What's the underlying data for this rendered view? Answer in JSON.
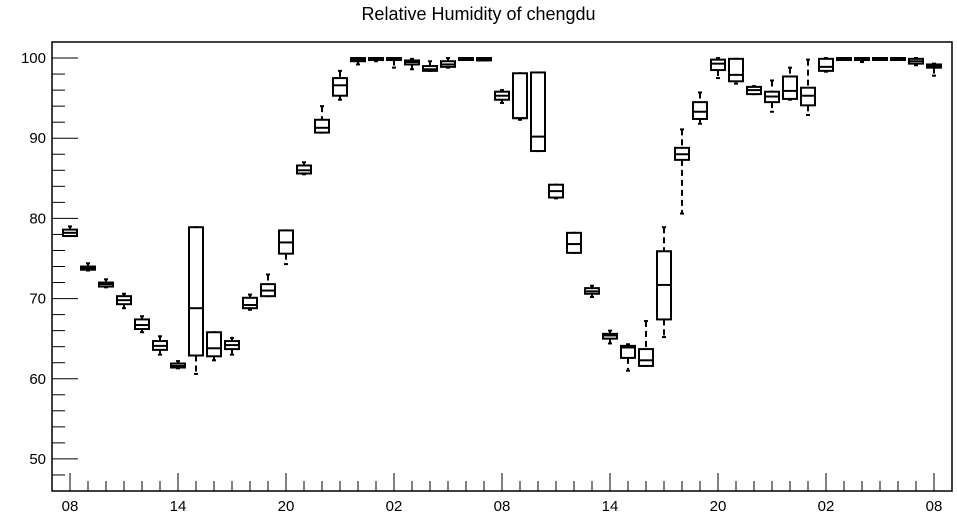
{
  "chart_data": {
    "type": "box",
    "title": "Relative Humidity of chengdu",
    "xlabel": "",
    "ylabel": "",
    "ylim": [
      46,
      102
    ],
    "xlim": [
      0,
      48
    ],
    "yticks": [
      50,
      60,
      70,
      80,
      90,
      100
    ],
    "xticks": [
      {
        "label": "08",
        "x": 0
      },
      {
        "label": "14",
        "x": 6
      },
      {
        "label": "20",
        "x": 12
      },
      {
        "label": "02",
        "x": 18
      },
      {
        "label": "08",
        "x": 24
      },
      {
        "label": "14",
        "x": 30
      },
      {
        "label": "20",
        "x": 36
      },
      {
        "label": "02",
        "x": 42
      },
      {
        "label": "08",
        "x": 48
      }
    ],
    "grid": false,
    "boxes": [
      {
        "x": 0,
        "min": 77.8,
        "q1": 77.8,
        "median": 78.2,
        "q3": 78.6,
        "max": 79.0
      },
      {
        "x": 1,
        "min": 73.5,
        "q1": 73.6,
        "median": 73.8,
        "q3": 74.0,
        "max": 74.4
      },
      {
        "x": 2,
        "min": 71.4,
        "q1": 71.5,
        "median": 71.8,
        "q3": 72.0,
        "max": 72.4
      },
      {
        "x": 3,
        "min": 68.8,
        "q1": 69.3,
        "median": 69.8,
        "q3": 70.3,
        "max": 70.6
      },
      {
        "x": 4,
        "min": 65.8,
        "q1": 66.2,
        "median": 66.7,
        "q3": 67.4,
        "max": 67.8
      },
      {
        "x": 5,
        "min": 63.0,
        "q1": 63.6,
        "median": 64.1,
        "q3": 64.7,
        "max": 65.3
      },
      {
        "x": 6,
        "min": 61.3,
        "q1": 61.4,
        "median": 61.6,
        "q3": 61.9,
        "max": 62.2
      },
      {
        "x": 7,
        "min": 60.6,
        "q1": 62.9,
        "median": 68.8,
        "q3": 78.9,
        "max": 78.9
      },
      {
        "x": 8,
        "min": 62.3,
        "q1": 62.8,
        "median": 63.8,
        "q3": 65.8,
        "max": 65.8
      },
      {
        "x": 9,
        "min": 63.0,
        "q1": 63.7,
        "median": 64.2,
        "q3": 64.7,
        "max": 65.1
      },
      {
        "x": 10,
        "min": 68.6,
        "q1": 68.8,
        "median": 69.2,
        "q3": 70.1,
        "max": 70.5
      },
      {
        "x": 11,
        "min": 70.3,
        "q1": 70.3,
        "median": 71.0,
        "q3": 71.8,
        "max": 73.0
      },
      {
        "x": 12,
        "min": 74.3,
        "q1": 75.6,
        "median": 77.0,
        "q3": 78.5,
        "max": 78.5
      },
      {
        "x": 13,
        "min": 85.5,
        "q1": 85.6,
        "median": 86.0,
        "q3": 86.6,
        "max": 87.0
      },
      {
        "x": 14,
        "min": 90.7,
        "q1": 90.7,
        "median": 91.3,
        "q3": 92.3,
        "max": 94.0
      },
      {
        "x": 15,
        "min": 94.8,
        "q1": 95.3,
        "median": 96.6,
        "q3": 97.5,
        "max": 98.4
      },
      {
        "x": 16,
        "min": 99.2,
        "q1": 99.6,
        "median": 99.8,
        "q3": 100.0,
        "max": 100.0
      },
      {
        "x": 17,
        "min": 99.6,
        "q1": 99.9,
        "median": 100.0,
        "q3": 100.0,
        "max": 100.0
      },
      {
        "x": 18,
        "min": 98.8,
        "q1": 99.8,
        "median": 100.0,
        "q3": 100.0,
        "max": 100.0
      },
      {
        "x": 19,
        "min": 98.6,
        "q1": 99.2,
        "median": 99.5,
        "q3": 99.7,
        "max": 99.9
      },
      {
        "x": 20,
        "min": 98.4,
        "q1": 98.4,
        "median": 98.6,
        "q3": 99.0,
        "max": 99.6
      },
      {
        "x": 21,
        "min": 98.8,
        "q1": 98.9,
        "median": 99.2,
        "q3": 99.6,
        "max": 100.0
      },
      {
        "x": 22,
        "min": 99.9,
        "q1": 100.0,
        "median": 100.0,
        "q3": 100.0,
        "max": 100.0
      },
      {
        "x": 23,
        "min": 99.7,
        "q1": 99.7,
        "median": 99.8,
        "q3": 100.0,
        "max": 100.0
      },
      {
        "x": 24,
        "min": 94.4,
        "q1": 94.8,
        "median": 95.3,
        "q3": 95.8,
        "max": 96.0
      },
      {
        "x": 25,
        "min": 92.3,
        "q1": 92.5,
        "median": 92.5,
        "q3": 98.1,
        "max": 98.1
      },
      {
        "x": 26,
        "min": 88.4,
        "q1": 88.4,
        "median": 90.2,
        "q3": 98.2,
        "max": 98.2
      },
      {
        "x": 27,
        "min": 82.5,
        "q1": 82.6,
        "median": 83.4,
        "q3": 84.2,
        "max": 84.2
      },
      {
        "x": 28,
        "min": 75.7,
        "q1": 75.7,
        "median": 76.8,
        "q3": 78.2,
        "max": 78.2
      },
      {
        "x": 29,
        "min": 70.2,
        "q1": 70.6,
        "median": 70.9,
        "q3": 71.3,
        "max": 71.6
      },
      {
        "x": 30,
        "min": 64.4,
        "q1": 65.0,
        "median": 65.4,
        "q3": 65.6,
        "max": 66.0
      },
      {
        "x": 31,
        "min": 61.0,
        "q1": 62.6,
        "median": 63.9,
        "q3": 64.1,
        "max": 64.3
      },
      {
        "x": 32,
        "min": 61.6,
        "q1": 61.6,
        "median": 62.3,
        "q3": 63.7,
        "max": 67.2
      },
      {
        "x": 33,
        "min": 65.2,
        "q1": 67.4,
        "median": 71.7,
        "q3": 75.9,
        "max": 78.9
      },
      {
        "x": 34,
        "min": 80.6,
        "q1": 87.3,
        "median": 88.0,
        "q3": 88.8,
        "max": 91.1
      },
      {
        "x": 35,
        "min": 91.8,
        "q1": 92.4,
        "median": 93.3,
        "q3": 94.5,
        "max": 95.7
      },
      {
        "x": 36,
        "min": 97.5,
        "q1": 98.5,
        "median": 99.3,
        "q3": 99.8,
        "max": 100.0
      },
      {
        "x": 37,
        "min": 96.8,
        "q1": 97.1,
        "median": 97.9,
        "q3": 99.9,
        "max": 99.9
      },
      {
        "x": 38,
        "min": 95.5,
        "q1": 95.5,
        "median": 96.0,
        "q3": 96.4,
        "max": 96.5
      },
      {
        "x": 39,
        "min": 93.3,
        "q1": 94.5,
        "median": 95.2,
        "q3": 95.8,
        "max": 97.2
      },
      {
        "x": 40,
        "min": 94.8,
        "q1": 94.9,
        "median": 95.9,
        "q3": 97.7,
        "max": 98.8
      },
      {
        "x": 41,
        "min": 92.9,
        "q1": 94.1,
        "median": 95.3,
        "q3": 96.3,
        "max": 99.8
      },
      {
        "x": 42,
        "min": 98.3,
        "q1": 98.4,
        "median": 98.9,
        "q3": 99.9,
        "max": 100.0
      },
      {
        "x": 43,
        "min": 99.8,
        "q1": 100.0,
        "median": 100.0,
        "q3": 100.0,
        "max": 100.0
      },
      {
        "x": 44,
        "min": 99.5,
        "q1": 99.9,
        "median": 100.0,
        "q3": 100.0,
        "max": 100.0
      },
      {
        "x": 45,
        "min": 99.9,
        "q1": 100.0,
        "median": 100.0,
        "q3": 100.0,
        "max": 100.0
      },
      {
        "x": 46,
        "min": 99.8,
        "q1": 99.9,
        "median": 100.0,
        "q3": 100.0,
        "max": 100.0
      },
      {
        "x": 47,
        "min": 99.1,
        "q1": 99.3,
        "median": 99.6,
        "q3": 99.9,
        "max": 100.0
      },
      {
        "x": 48,
        "min": 97.8,
        "q1": 98.8,
        "median": 99.0,
        "q3": 99.2,
        "max": 99.3
      }
    ]
  }
}
